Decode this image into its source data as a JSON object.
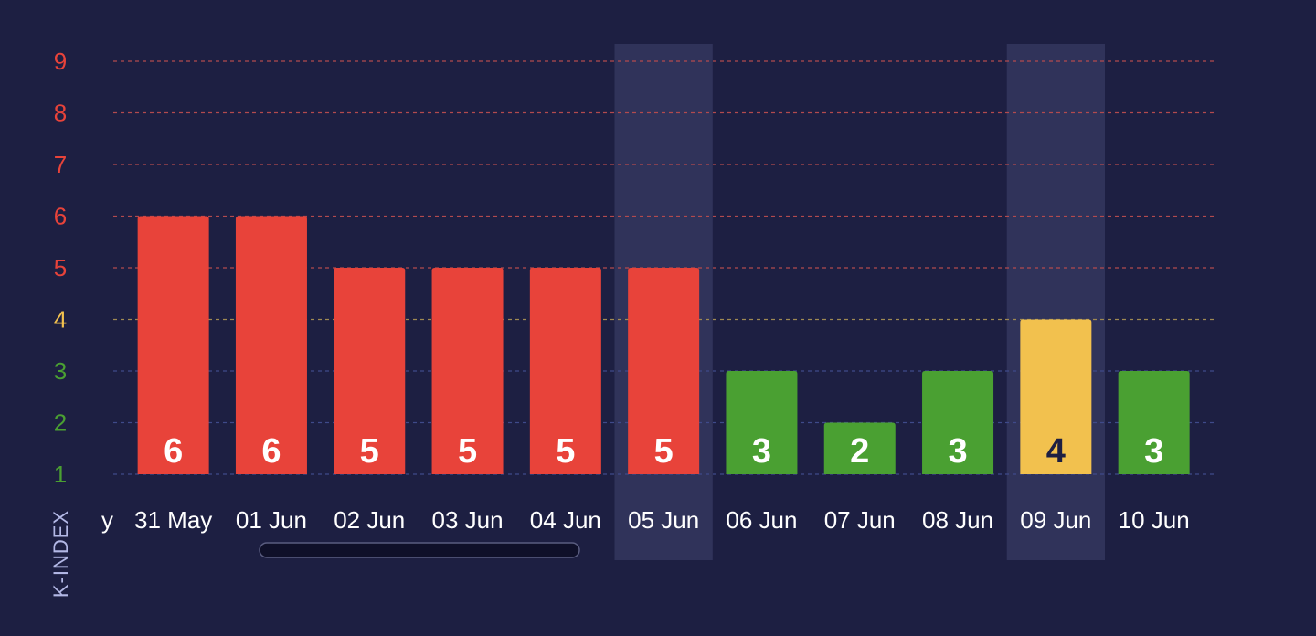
{
  "chart_data": {
    "type": "bar",
    "ylabel": "K-INDEX",
    "yticks": [
      "1",
      "2",
      "3",
      "4",
      "5",
      "6",
      "7",
      "8",
      "9"
    ],
    "ylim": [
      1,
      9
    ],
    "partial_left_label": "y",
    "categories": [
      "31 May",
      "01 Jun",
      "02 Jun",
      "03 Jun",
      "04 Jun",
      "05 Jun",
      "06 Jun",
      "07 Jun",
      "08 Jun",
      "09 Jun",
      "10 Jun"
    ],
    "values": [
      6,
      6,
      5,
      5,
      5,
      5,
      3,
      2,
      3,
      4,
      3
    ],
    "value_labels": [
      "6",
      "6",
      "5",
      "5",
      "5",
      "5",
      "3",
      "2",
      "3",
      "4",
      "3"
    ],
    "highlighted_categories": [
      "05 Jun",
      "09 Jun"
    ],
    "grid": true,
    "colors": {
      "background": "#1d1f42",
      "storm": "#e8433a",
      "active": "#f2c14e",
      "quiet": "#4aa032",
      "highlight": "#30335a",
      "grid_storm": "#b24a4e",
      "grid_active": "#a08a52",
      "grid_quiet": "#3f4a8a",
      "label_dark": "#1d1f42"
    },
    "color_rules": {
      "quiet_max": 3,
      "active_max": 4
    }
  }
}
